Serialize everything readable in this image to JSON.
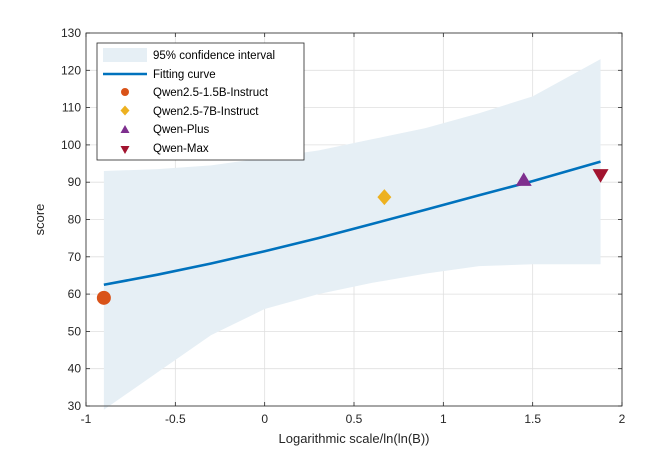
{
  "chart_data": {
    "type": "scatter",
    "xlabel": "Logarithmic scale/ln(ln(B))",
    "ylabel": "score",
    "xlim": [
      -1,
      2
    ],
    "ylim": [
      30,
      130
    ],
    "xticks": [
      -1,
      -0.5,
      0,
      0.5,
      1,
      1.5,
      2
    ],
    "xtick_labels": [
      "-1",
      "-0.5",
      "0",
      "0.5",
      "1",
      "1.5",
      "2"
    ],
    "yticks": [
      30,
      40,
      50,
      60,
      70,
      80,
      90,
      100,
      110,
      120,
      130
    ],
    "ytick_labels": [
      "30",
      "40",
      "50",
      "60",
      "70",
      "80",
      "90",
      "100",
      "110",
      "120",
      "130"
    ],
    "grid": true,
    "legend_position": "top-left",
    "confidence_band": {
      "name": "95% confidence interval",
      "color": "#e6eff5",
      "x": [
        -0.9,
        -0.6,
        -0.3,
        0,
        0.3,
        0.6,
        0.9,
        1.2,
        1.5,
        1.88
      ],
      "upper": [
        93,
        93.5,
        94.5,
        96.5,
        98.5,
        101.5,
        104.5,
        108.5,
        113,
        123
      ],
      "lower": [
        29,
        39,
        49,
        56,
        60,
        63,
        65.5,
        67.5,
        68,
        68
      ]
    },
    "fit_curve": {
      "name": "Fitting curve",
      "color": "#0072bd",
      "x": [
        -0.9,
        -0.6,
        -0.3,
        0,
        0.3,
        0.6,
        0.9,
        1.2,
        1.5,
        1.88
      ],
      "y": [
        62.5,
        65.2,
        68.2,
        71.5,
        75,
        78.8,
        82.6,
        86.5,
        90.3,
        95.5
      ]
    },
    "points": [
      {
        "name": "Qwen2.5-1.5B-Instruct",
        "marker": "circle",
        "color": "#d95319",
        "x": -0.9,
        "y": 59
      },
      {
        "name": "Qwen2.5-7B-Instruct",
        "marker": "diamond",
        "color": "#edb120",
        "x": 0.67,
        "y": 86
      },
      {
        "name": "Qwen-Plus",
        "marker": "triangle-up",
        "color": "#7e2f8e",
        "x": 1.45,
        "y": 90.5
      },
      {
        "name": "Qwen-Max",
        "marker": "triangle-down",
        "color": "#a2142f",
        "x": 1.88,
        "y": 92
      }
    ]
  }
}
